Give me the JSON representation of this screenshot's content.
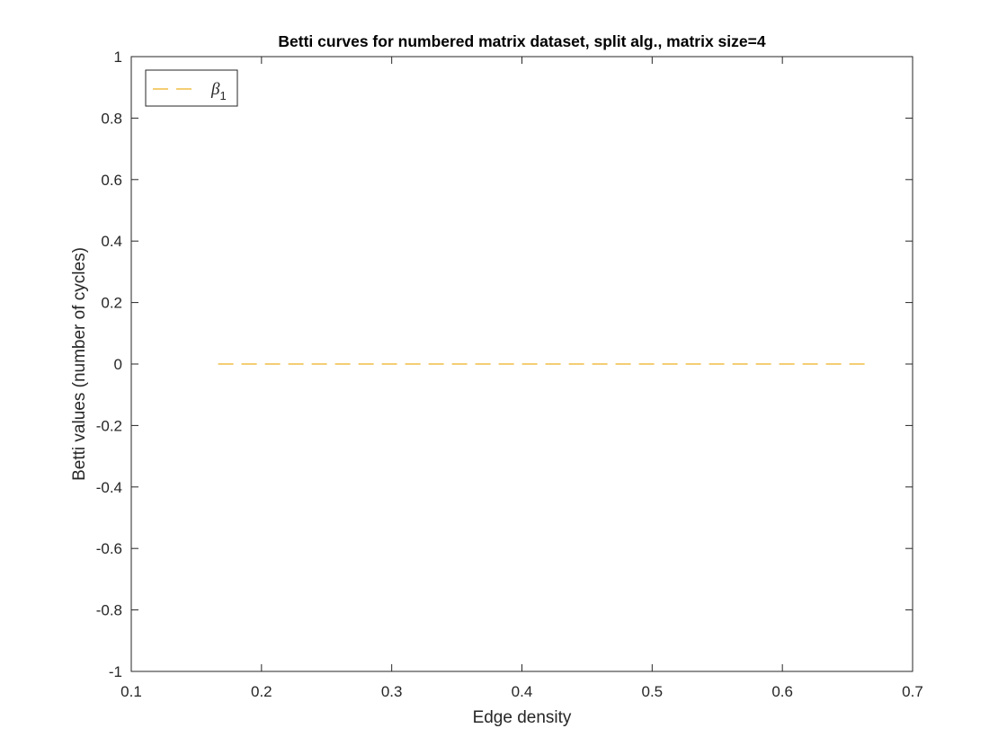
{
  "chart_data": {
    "type": "line",
    "title": "Betti curves for numbered matrix dataset, split alg., matrix size=4",
    "xlabel": "Edge density",
    "ylabel": "Betti values (number of cycles)",
    "xlim": [
      0.1,
      0.7
    ],
    "ylim": [
      -1,
      1
    ],
    "xticks": [
      0.1,
      0.2,
      0.3,
      0.4,
      0.5,
      0.6,
      0.7
    ],
    "xtick_labels": [
      "0.1",
      "0.2",
      "0.3",
      "0.4",
      "0.5",
      "0.6",
      "0.7"
    ],
    "yticks": [
      -1,
      -0.8,
      -0.6,
      -0.4,
      -0.2,
      0,
      0.2,
      0.4,
      0.6,
      0.8,
      1
    ],
    "ytick_labels": [
      "-1",
      "-0.8",
      "-0.6",
      "-0.4",
      "-0.2",
      "0",
      "0.2",
      "0.4",
      "0.6",
      "0.8",
      "1"
    ],
    "grid": false,
    "legend_position": "top-left",
    "series": [
      {
        "name": "β1",
        "legend_symbol": "β",
        "legend_subscript": "1",
        "color": "#EDB120",
        "line_style": "dashed",
        "x": [
          0.1667,
          0.6667
        ],
        "y": [
          0,
          0
        ]
      }
    ]
  }
}
